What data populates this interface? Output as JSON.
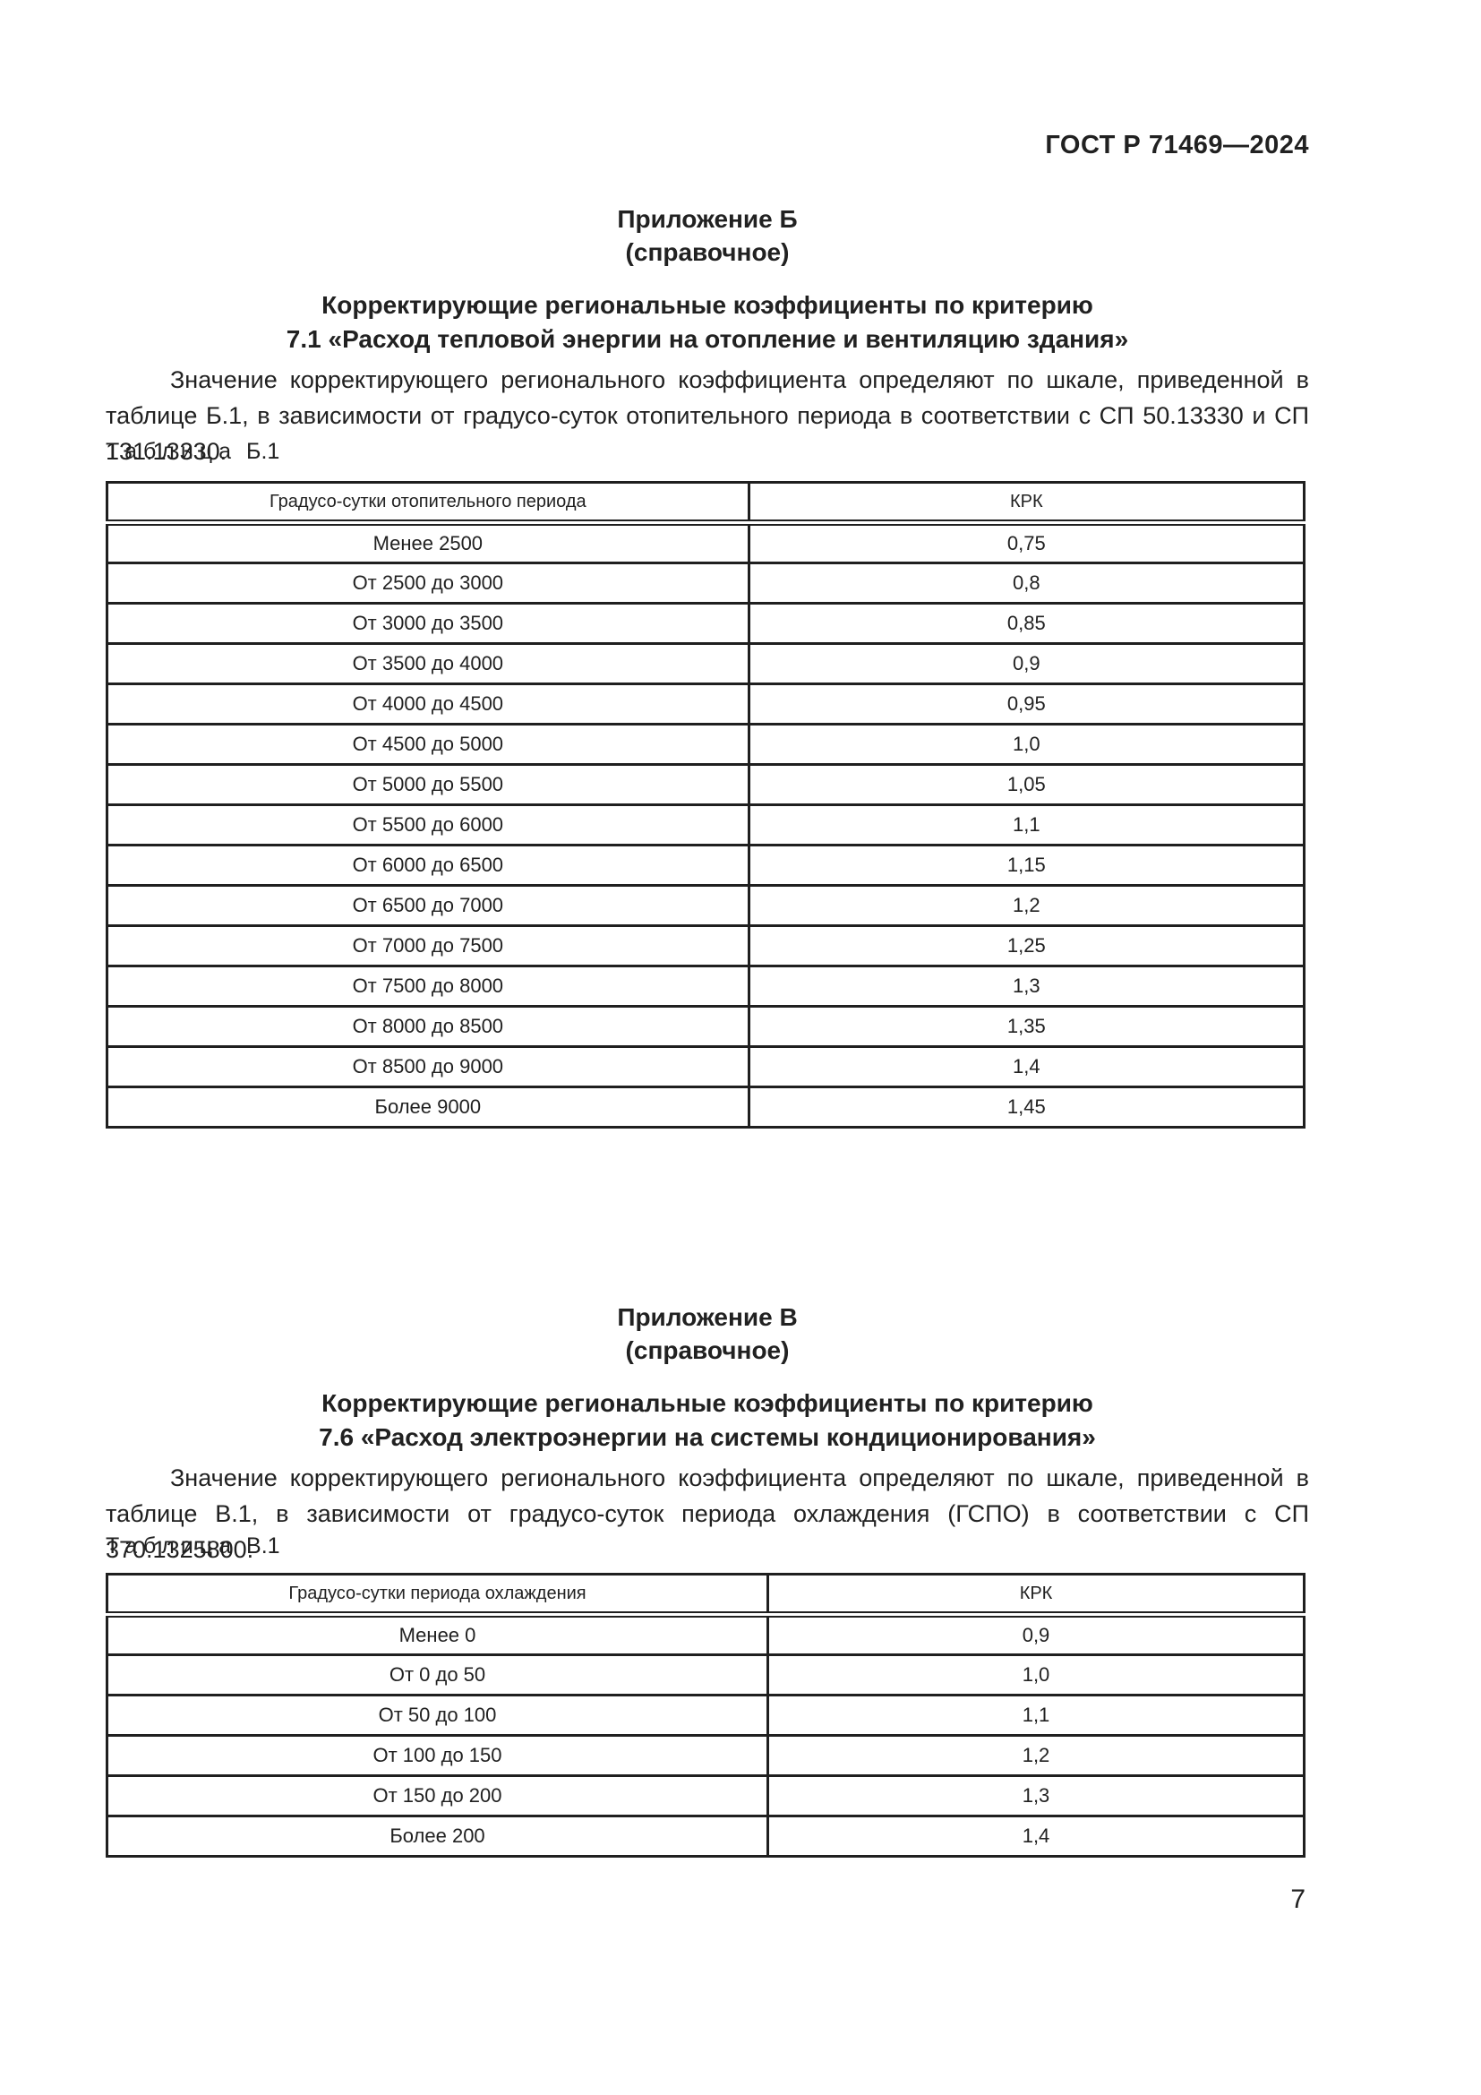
{
  "colors": {
    "ink": "#212121",
    "paper": "#ffffff"
  },
  "page": {
    "header": "ГОСТ Р 71469—2024",
    "number": "7"
  },
  "appendix_b": {
    "name": "Приложение Б",
    "kind": "(справочное)",
    "title_line1": "Корректирующие региональные коэффициенты по критерию",
    "title_line2": "7.1 «Расход тепловой энергии на отопление и вентиляцию здания»",
    "paragraph": "Значение корректирующего регионального коэффициента определяют по шкале, приведенной в таблице Б.1, в зависимости от градусо-суток отопительного периода в соответствии с СП 50.13330 и СП 131.13330.",
    "table_label": {
      "word": "Таблица",
      "number": "Б.1"
    },
    "table": {
      "col1_header": "Градусо-сутки отопительного периода",
      "col2_header": "КРК",
      "rows": [
        [
          "Менее 2500",
          "0,75"
        ],
        [
          "От 2500 до 3000",
          "0,8"
        ],
        [
          "От 3000 до 3500",
          "0,85"
        ],
        [
          "От 3500 до 4000",
          "0,9"
        ],
        [
          "От 4000 до 4500",
          "0,95"
        ],
        [
          "От 4500 до 5000",
          "1,0"
        ],
        [
          "От 5000 до 5500",
          "1,05"
        ],
        [
          "От 5500 до 6000",
          "1,1"
        ],
        [
          "От 6000 до 6500",
          "1,15"
        ],
        [
          "От 6500 до 7000",
          "1,2"
        ],
        [
          "От 7000 до 7500",
          "1,25"
        ],
        [
          "От 7500 до 8000",
          "1,3"
        ],
        [
          "От 8000 до 8500",
          "1,35"
        ],
        [
          "От 8500 до 9000",
          "1,4"
        ],
        [
          "Более 9000",
          "1,45"
        ]
      ]
    }
  },
  "appendix_v": {
    "name": "Приложение В",
    "kind": "(справочное)",
    "title_line1": "Корректирующие региональные коэффициенты по критерию",
    "title_line2": "7.6 «Расход электроэнергии на системы кондиционирования»",
    "paragraph": "Значение корректирующего регионального коэффициента определяют по шкале, приведенной в таблице В.1, в зависимости от градусо-суток периода охлаждения (ГСПО) в соответствии с СП 370.1325800.",
    "table_label": {
      "word": "Таблица",
      "number": "В.1"
    },
    "table": {
      "col1_header": "Градусо-сутки периода охлаждения",
      "col2_header": "КРК",
      "rows": [
        [
          "Менее 0",
          "0,9"
        ],
        [
          "От 0 до 50",
          "1,0"
        ],
        [
          "От 50 до 100",
          "1,1"
        ],
        [
          "От 100 до 150",
          "1,2"
        ],
        [
          "От 150 до 200",
          "1,3"
        ],
        [
          "Более 200",
          "1,4"
        ]
      ]
    }
  }
}
